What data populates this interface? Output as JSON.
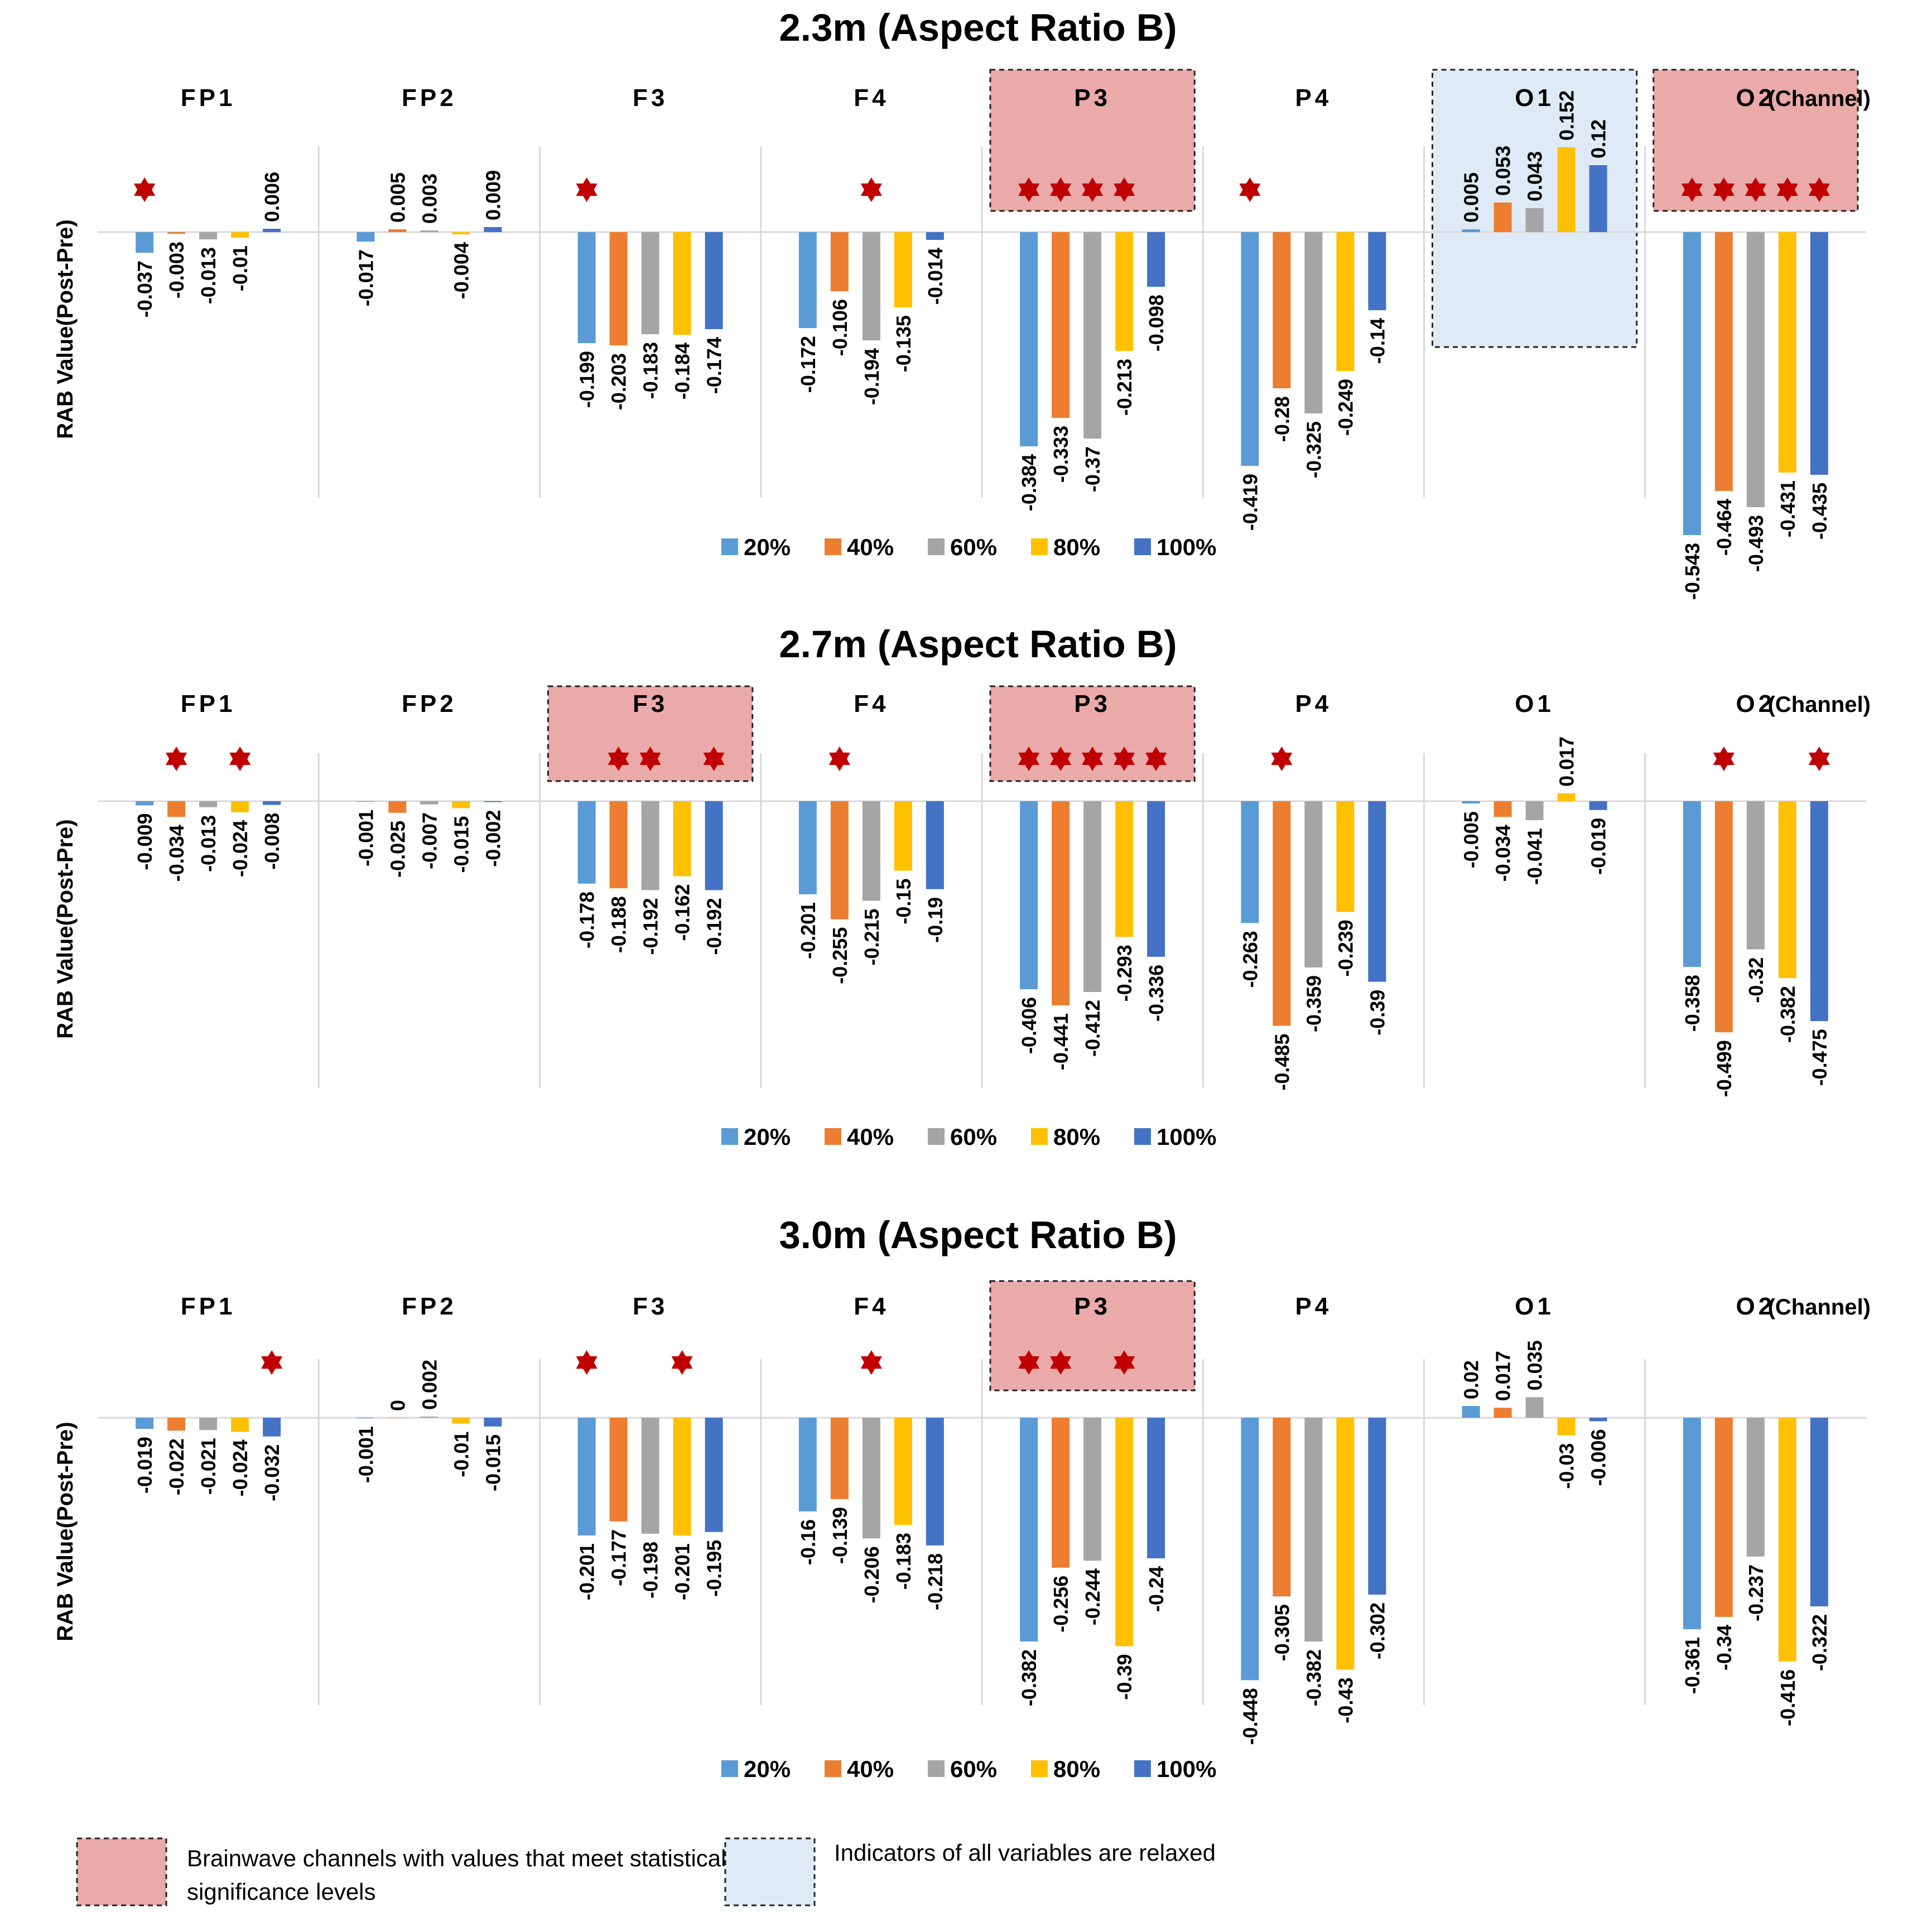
{
  "series_names": [
    "20%",
    "40%",
    "60%",
    "80%",
    "100%"
  ],
  "series_colors": [
    "#5B9BD5",
    "#ED7D31",
    "#A5A5A5",
    "#FFC000",
    "#4472C4"
  ],
  "highlight_colors": {
    "significant": "#EBAAAA",
    "relaxed": "#DEEBF7",
    "star": "#C00000"
  },
  "y_axis_label": "RAB Value(Post-Pre)",
  "channel_suffix": "(Channel)",
  "channel_labels": [
    "FP1",
    "FP2",
    "F3",
    "F4",
    "P3",
    "P4",
    "O1",
    "O2"
  ],
  "footer_legend": {
    "significant": "Brainwave channels with values that meet statistical significance levels",
    "relaxed": "Indicators of all variables are relaxed"
  },
  "chart_data": [
    {
      "type": "bar",
      "title": "2.3m (Aspect Ratio B)",
      "ylabel": "RAB Value(Post-Pre)",
      "categories": [
        "FP1",
        "FP2",
        "F3",
        "F4",
        "P3",
        "P4",
        "O1",
        "O2"
      ],
      "series": [
        {
          "name": "20%",
          "values": [
            -0.037,
            -0.017,
            -0.199,
            -0.172,
            -0.384,
            -0.419,
            0.005,
            -0.543
          ]
        },
        {
          "name": "40%",
          "values": [
            -0.003,
            0.005,
            -0.203,
            -0.106,
            -0.333,
            -0.28,
            0.053,
            -0.464
          ]
        },
        {
          "name": "60%",
          "values": [
            -0.013,
            0.003,
            -0.183,
            -0.194,
            -0.37,
            -0.325,
            0.043,
            -0.493
          ]
        },
        {
          "name": "80%",
          "values": [
            -0.01,
            -0.004,
            -0.184,
            -0.135,
            -0.213,
            -0.249,
            0.152,
            -0.431
          ]
        },
        {
          "name": "100%",
          "values": [
            0.006,
            0.009,
            -0.174,
            -0.014,
            -0.098,
            -0.14,
            0.12,
            -0.435
          ]
        }
      ],
      "significant_channels": [
        "P3",
        "O2"
      ],
      "relaxed_channels": [
        "O1"
      ],
      "significance_stars": {
        "FP1": [
          0
        ],
        "F3": [
          0
        ],
        "F4": [
          2
        ],
        "P3": [
          0,
          1,
          2,
          3
        ],
        "P4": [
          0
        ],
        "O2": [
          0,
          1,
          2,
          3,
          4
        ]
      }
    },
    {
      "type": "bar",
      "title": "2.7m (Aspect Ratio B)",
      "ylabel": "RAB Value(Post-Pre)",
      "categories": [
        "FP1",
        "FP2",
        "F3",
        "F4",
        "P3",
        "P4",
        "O1",
        "O2"
      ],
      "series": [
        {
          "name": "20%",
          "values": [
            -0.009,
            -0.001,
            -0.178,
            -0.201,
            -0.406,
            -0.263,
            -0.005,
            -0.358
          ]
        },
        {
          "name": "40%",
          "values": [
            -0.034,
            -0.025,
            -0.188,
            -0.255,
            -0.441,
            -0.485,
            -0.034,
            -0.499
          ]
        },
        {
          "name": "60%",
          "values": [
            -0.013,
            -0.007,
            -0.192,
            -0.215,
            -0.412,
            -0.359,
            -0.041,
            -0.32
          ]
        },
        {
          "name": "80%",
          "values": [
            -0.024,
            -0.015,
            -0.162,
            -0.15,
            -0.293,
            -0.239,
            0.017,
            -0.382
          ]
        },
        {
          "name": "100%",
          "values": [
            -0.008,
            -0.002,
            -0.192,
            -0.19,
            -0.336,
            -0.39,
            -0.019,
            -0.475
          ]
        }
      ],
      "significant_channels": [
        "F3",
        "P3"
      ],
      "relaxed_channels": [],
      "significance_stars": {
        "FP1": [
          1,
          3
        ],
        "F3": [
          1,
          2,
          4
        ],
        "F4": [
          1
        ],
        "P3": [
          0,
          1,
          2,
          3,
          4
        ],
        "P4": [
          1
        ],
        "O2": [
          1,
          4
        ]
      }
    },
    {
      "type": "bar",
      "title": "3.0m (Aspect Ratio B)",
      "ylabel": "RAB Value(Post-Pre)",
      "categories": [
        "FP1",
        "FP2",
        "F3",
        "F4",
        "P3",
        "P4",
        "O1",
        "O2"
      ],
      "series": [
        {
          "name": "20%",
          "values": [
            -0.019,
            -0.001,
            -0.201,
            -0.16,
            -0.382,
            -0.448,
            0.02,
            -0.361
          ]
        },
        {
          "name": "40%",
          "values": [
            -0.022,
            0,
            -0.177,
            -0.139,
            -0.256,
            -0.305,
            0.017,
            -0.34
          ]
        },
        {
          "name": "60%",
          "values": [
            -0.021,
            0.002,
            -0.198,
            -0.206,
            -0.244,
            -0.382,
            0.035,
            -0.237
          ]
        },
        {
          "name": "80%",
          "values": [
            -0.024,
            -0.01,
            -0.201,
            -0.183,
            -0.39,
            -0.43,
            -0.03,
            -0.416
          ]
        },
        {
          "name": "100%",
          "values": [
            -0.032,
            -0.015,
            -0.195,
            -0.218,
            -0.24,
            -0.302,
            -0.006,
            -0.322
          ]
        }
      ],
      "significant_channels": [
        "P3"
      ],
      "relaxed_channels": [],
      "significance_stars": {
        "FP1": [
          4
        ],
        "F3": [
          0,
          3
        ],
        "F4": [
          2
        ],
        "P3": [
          0,
          1,
          3
        ]
      }
    }
  ]
}
